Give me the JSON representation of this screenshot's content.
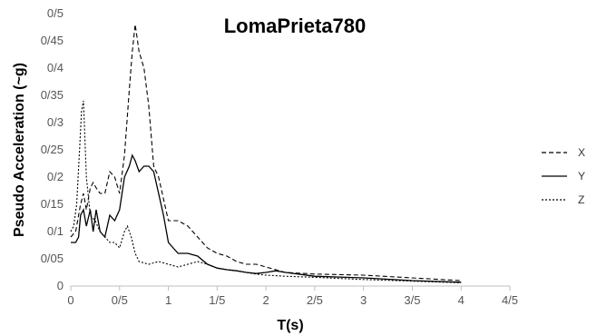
{
  "chart_data": {
    "type": "line",
    "title": "LomaPrieta780",
    "xlabel": "T(s)",
    "ylabel": "Pseudo Acceleration (~g)",
    "xlim": [
      0,
      4.5
    ],
    "ylim": [
      0,
      0.5
    ],
    "x_ticks": [
      0,
      0.5,
      1,
      1.5,
      2,
      2.5,
      3,
      3.5,
      4,
      4.5
    ],
    "x_tick_labels": [
      "0",
      "0/5",
      "1",
      "1/5",
      "2",
      "2/5",
      "3",
      "3/5",
      "4",
      "4/5"
    ],
    "y_ticks": [
      0,
      0.05,
      0.1,
      0.15,
      0.2,
      0.25,
      0.3,
      0.35,
      0.4,
      0.45,
      0.5
    ],
    "y_tick_labels": [
      "0",
      "0/05",
      "0/1",
      "0/15",
      "0/2",
      "0/25",
      "0/3",
      "0/35",
      "0/4",
      "0/45",
      "0/5"
    ],
    "grid": false,
    "legend_position": "right",
    "series": [
      {
        "name": "X",
        "dash": "dashed",
        "x": [
          0,
          0.05,
          0.1,
          0.13,
          0.16,
          0.2,
          0.23,
          0.26,
          0.3,
          0.35,
          0.4,
          0.45,
          0.5,
          0.55,
          0.6,
          0.63,
          0.66,
          0.7,
          0.75,
          0.8,
          0.85,
          0.9,
          0.95,
          1.0,
          1.05,
          1.1,
          1.2,
          1.3,
          1.4,
          1.5,
          1.6,
          1.7,
          1.8,
          1.9,
          2.0,
          2.1,
          2.2,
          2.5,
          3.0,
          3.5,
          4.0
        ],
        "y": [
          0.09,
          0.1,
          0.15,
          0.17,
          0.14,
          0.18,
          0.19,
          0.18,
          0.17,
          0.17,
          0.21,
          0.2,
          0.17,
          0.24,
          0.36,
          0.43,
          0.48,
          0.43,
          0.4,
          0.33,
          0.22,
          0.2,
          0.16,
          0.12,
          0.12,
          0.12,
          0.11,
          0.09,
          0.07,
          0.06,
          0.055,
          0.045,
          0.04,
          0.04,
          0.035,
          0.03,
          0.025,
          0.022,
          0.02,
          0.015,
          0.01
        ]
      },
      {
        "name": "Y",
        "dash": "solid",
        "x": [
          0,
          0.05,
          0.08,
          0.1,
          0.13,
          0.16,
          0.2,
          0.23,
          0.26,
          0.3,
          0.35,
          0.4,
          0.45,
          0.5,
          0.55,
          0.6,
          0.63,
          0.66,
          0.7,
          0.75,
          0.8,
          0.85,
          0.9,
          0.95,
          1.0,
          1.05,
          1.1,
          1.2,
          1.3,
          1.4,
          1.5,
          1.6,
          1.7,
          1.8,
          1.9,
          2.0,
          2.1,
          2.2,
          2.5,
          3.0,
          3.5,
          4.0
        ],
        "y": [
          0.08,
          0.08,
          0.09,
          0.13,
          0.14,
          0.11,
          0.14,
          0.1,
          0.14,
          0.1,
          0.09,
          0.13,
          0.12,
          0.14,
          0.2,
          0.22,
          0.24,
          0.23,
          0.21,
          0.22,
          0.22,
          0.21,
          0.17,
          0.13,
          0.08,
          0.07,
          0.06,
          0.06,
          0.055,
          0.04,
          0.033,
          0.03,
          0.028,
          0.025,
          0.023,
          0.025,
          0.028,
          0.025,
          0.018,
          0.015,
          0.01,
          0.007
        ]
      },
      {
        "name": "Z",
        "dash": "dotted",
        "x": [
          0,
          0.03,
          0.06,
          0.09,
          0.11,
          0.13,
          0.16,
          0.2,
          0.25,
          0.3,
          0.35,
          0.4,
          0.45,
          0.5,
          0.55,
          0.58,
          0.62,
          0.66,
          0.7,
          0.8,
          0.9,
          1.0,
          1.1,
          1.2,
          1.3,
          1.4,
          1.5,
          1.6,
          1.7,
          1.8,
          1.9,
          2.0,
          2.2,
          2.5,
          3.0,
          3.5,
          4.0
        ],
        "y": [
          0.1,
          0.11,
          0.15,
          0.25,
          0.32,
          0.34,
          0.2,
          0.13,
          0.12,
          0.1,
          0.09,
          0.08,
          0.08,
          0.07,
          0.1,
          0.11,
          0.09,
          0.06,
          0.045,
          0.04,
          0.045,
          0.04,
          0.035,
          0.04,
          0.045,
          0.04,
          0.033,
          0.03,
          0.028,
          0.025,
          0.022,
          0.02,
          0.018,
          0.016,
          0.012,
          0.009,
          0.006
        ]
      }
    ]
  }
}
